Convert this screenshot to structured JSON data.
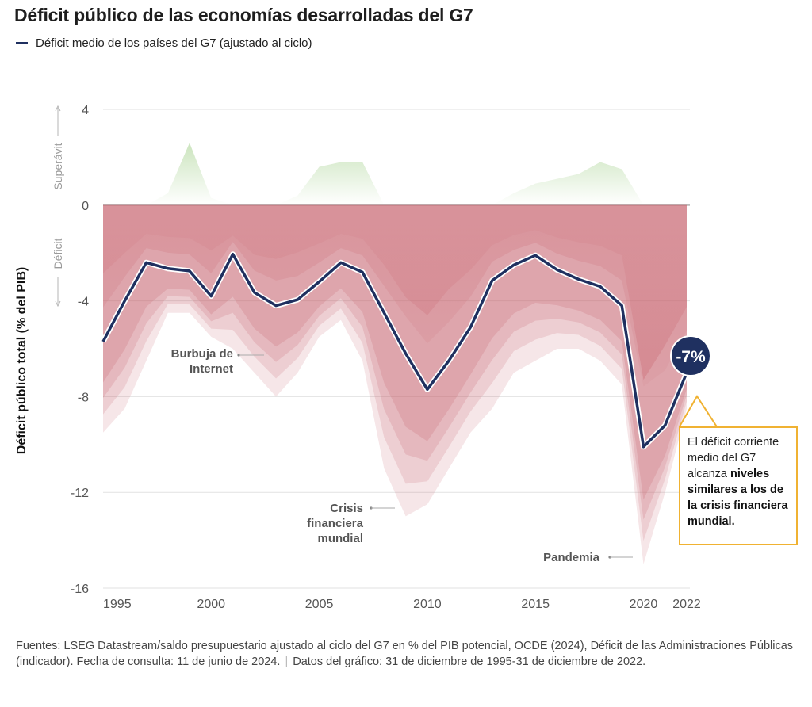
{
  "title": "Déficit público de las economías desarrolladas del G7",
  "legend": {
    "label": "Déficit medio de los países del G7 (ajustado al ciclo)",
    "color": "#1f3060"
  },
  "y_axis": {
    "label": "Déficit público total (% del PIB)",
    "upper_label": "Superávit",
    "lower_label": "Déficit"
  },
  "annotations": {
    "dotcom": [
      "Burbuja de",
      "Internet"
    ],
    "gfc": [
      "Crisis",
      "financiera",
      "mundial"
    ],
    "pandemic": [
      "Pandemia"
    ],
    "last_value_badge": "-7%",
    "callout_plain": "El déficit corriente medio del G7 alcanza ",
    "callout_bold": "niveles similares a los de la crisis financiera mundial."
  },
  "colors": {
    "line": "#1f3060",
    "deficit_fill": "#c9646e",
    "surplus_fill": "#8cc46e",
    "callout_border": "#f0b232",
    "grid": "#dddddd"
  },
  "footer": {
    "sources": "Fuentes: LSEG Datastream/saldo presupuestario ajustado al ciclo del G7 en % del PIB potencial, OCDE (2024), Déficit de las Administraciones Públicas (indicador). Fecha de consulta: 11 de junio de 2024.",
    "data_range": "Datos del gráfico: 31 de diciembre de 1995-31 de diciembre de 2022."
  },
  "chart_data": {
    "type": "line",
    "title": "Déficit público de las economías desarrolladas del G7",
    "xlabel": "",
    "ylabel": "Déficit público total (% del PIB)",
    "ylim": [
      -16,
      4
    ],
    "xlim": [
      1995,
      2022
    ],
    "yticks": [
      4,
      0,
      -4,
      -8,
      -12,
      -16
    ],
    "xticks": [
      1995,
      2000,
      2005,
      2010,
      2015,
      2020,
      2022
    ],
    "grid": true,
    "legend_position": "top-left",
    "x": [
      1995,
      1996,
      1997,
      1998,
      1999,
      2000,
      2001,
      2002,
      2003,
      2004,
      2005,
      2006,
      2007,
      2008,
      2009,
      2010,
      2011,
      2012,
      2013,
      2014,
      2015,
      2016,
      2017,
      2018,
      2019,
      2020,
      2021,
      2022
    ],
    "series": [
      {
        "name": "Déficit medio de los países del G7 (ajustado al ciclo)",
        "values": [
          -5.7,
          -4.0,
          -2.4,
          -2.65,
          -2.75,
          -3.8,
          -2.05,
          -3.65,
          -4.2,
          -3.95,
          -3.2,
          -2.4,
          -2.8,
          -4.5,
          -6.2,
          -7.7,
          -6.5,
          -5.1,
          -3.15,
          -2.5,
          -2.1,
          -2.7,
          -3.1,
          -3.4,
          -4.2,
          -10.1,
          -9.2,
          -7.0
        ]
      }
    ],
    "country_range_layers": [
      {
        "name": "country-band-max",
        "upper": [
          0,
          0,
          0,
          0.5,
          2.6,
          0.3,
          -0.5,
          -0.5,
          -0.3,
          0.4,
          1.6,
          1.8,
          1.8,
          -0.5,
          -1.5,
          -1.5,
          -0.5,
          -0.3,
          -0.2,
          0.5,
          0.9,
          1.1,
          1.3,
          1.8,
          1.5,
          -4.5,
          -2.5,
          -1.5
        ]
      },
      {
        "name": "country-band-min",
        "lower": [
          -9.5,
          -8.5,
          -6.5,
          -4.5,
          -4.5,
          -5.5,
          -6.0,
          -7.0,
          -8.0,
          -7.0,
          -5.5,
          -4.8,
          -6.5,
          -11.0,
          -13.0,
          -12.5,
          -11.0,
          -9.5,
          -8.5,
          -7.0,
          -6.5,
          -6.0,
          -6.0,
          -6.5,
          -7.5,
          -15.0,
          -12.0,
          -8.5
        ]
      }
    ],
    "annotations": [
      {
        "x": 2000,
        "text": "Burbuja de Internet"
      },
      {
        "x": 2009,
        "text": "Crisis financiera mundial"
      },
      {
        "x": 2020,
        "text": "Pandemia"
      },
      {
        "x": 2022,
        "text": "-7%"
      }
    ]
  }
}
